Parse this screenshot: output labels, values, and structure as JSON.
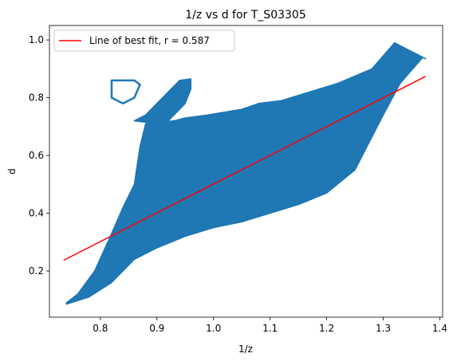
{
  "chart_data": {
    "type": "scatter",
    "title": "1/z vs d for T_S03305",
    "xlabel": "1/z",
    "ylabel": "d",
    "xlim": [
      0.71,
      1.405
    ],
    "ylim": [
      0.04,
      1.05
    ],
    "xticks": [
      0.8,
      0.9,
      1.0,
      1.1,
      1.2,
      1.3,
      1.4
    ],
    "xtick_labels": [
      "0.8",
      "0.9",
      "1.0",
      "1.1",
      "1.2",
      "1.3",
      "1.4"
    ],
    "yticks": [
      0.2,
      0.4,
      0.6,
      0.8,
      1.0
    ],
    "ytick_labels": [
      "0.2",
      "0.4",
      "0.6",
      "0.8",
      "1.0"
    ],
    "grid": false,
    "legend_position": "top-left",
    "colors": {
      "scatter": "#1f77b4",
      "fit_line": "#ff0000"
    },
    "series": [
      {
        "name": "scatter",
        "kind": "scatter-density",
        "regions": [
          {
            "shape": "main-band",
            "points": [
              [
                0.74,
                0.085
              ],
              [
                0.78,
                0.11
              ],
              [
                0.82,
                0.16
              ],
              [
                0.86,
                0.24
              ],
              [
                0.9,
                0.28
              ],
              [
                0.95,
                0.32
              ],
              [
                1.0,
                0.35
              ],
              [
                1.05,
                0.37
              ],
              [
                1.1,
                0.4
              ],
              [
                1.15,
                0.43
              ],
              [
                1.2,
                0.47
              ],
              [
                1.25,
                0.55
              ],
              [
                1.3,
                0.74
              ],
              [
                1.33,
                0.85
              ],
              [
                1.37,
                0.94
              ],
              [
                1.375,
                0.935
              ],
              [
                1.34,
                0.97
              ],
              [
                1.32,
                0.99
              ],
              [
                1.28,
                0.9
              ],
              [
                1.22,
                0.85
              ],
              [
                1.17,
                0.82
              ],
              [
                1.12,
                0.79
              ],
              [
                1.08,
                0.78
              ],
              [
                1.05,
                0.76
              ],
              [
                0.99,
                0.74
              ],
              [
                0.95,
                0.73
              ],
              [
                0.93,
                0.72
              ],
              [
                0.88,
                0.71
              ],
              [
                0.87,
                0.63
              ],
              [
                0.86,
                0.5
              ],
              [
                0.84,
                0.42
              ],
              [
                0.82,
                0.33
              ],
              [
                0.79,
                0.2
              ],
              [
                0.76,
                0.12
              ],
              [
                0.74,
                0.09
              ]
            ]
          },
          {
            "shape": "upper-left-block",
            "points": [
              [
                0.86,
                0.72
              ],
              [
                0.88,
                0.74
              ],
              [
                0.9,
                0.78
              ],
              [
                0.92,
                0.82
              ],
              [
                0.94,
                0.86
              ],
              [
                0.96,
                0.865
              ],
              [
                0.96,
                0.83
              ],
              [
                0.95,
                0.78
              ],
              [
                0.93,
                0.74
              ],
              [
                0.92,
                0.72
              ],
              [
                0.9,
                0.71
              ]
            ]
          },
          {
            "shape": "upper-left-outline",
            "points": [
              [
                0.82,
                0.86
              ],
              [
                0.86,
                0.86
              ],
              [
                0.87,
                0.845
              ],
              [
                0.86,
                0.8
              ],
              [
                0.84,
                0.78
              ],
              [
                0.82,
                0.8
              ]
            ]
          },
          {
            "shape": "lower-right-arm",
            "points": [
              [
                1.04,
                0.52
              ],
              [
                1.1,
                0.53
              ],
              [
                1.15,
                0.55
              ],
              [
                1.18,
                0.57
              ],
              [
                1.22,
                0.6
              ],
              [
                1.24,
                0.64
              ],
              [
                1.25,
                0.655
              ],
              [
                1.26,
                0.64
              ],
              [
                1.24,
                0.62
              ],
              [
                1.2,
                0.6
              ],
              [
                1.18,
                0.52
              ],
              [
                1.16,
                0.46
              ],
              [
                1.14,
                0.44
              ],
              [
                1.1,
                0.45
              ],
              [
                1.06,
                0.48
              ]
            ]
          }
        ]
      },
      {
        "name": "Line of best fit, r = 0.587",
        "kind": "line",
        "x": [
          0.735,
          1.375
        ],
        "y": [
          0.237,
          0.874
        ]
      }
    ],
    "legend": [
      {
        "label": "Line of best fit, r = 0.587",
        "color": "#ff0000"
      }
    ]
  }
}
